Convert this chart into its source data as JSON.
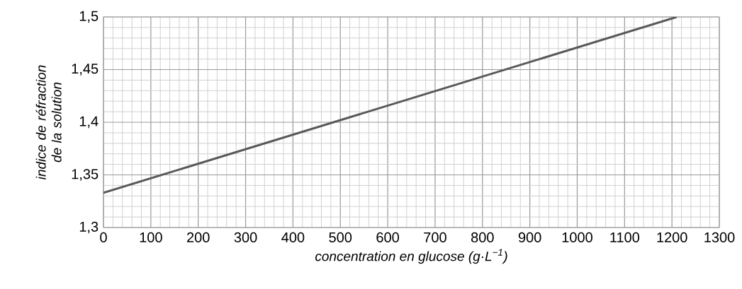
{
  "chart_data": {
    "type": "line",
    "xlabel": "concentration en glucose (g·L$^{−1}$)",
    "ylabel": "indice de réfraction de la solution",
    "x": [
      0,
      1210
    ],
    "series": [
      {
        "color": "#595959",
        "values": [
          1.333,
          1.5
        ]
      }
    ],
    "xlim": [
      0,
      1300
    ],
    "xticks": [
      0,
      100,
      200,
      300,
      400,
      500,
      600,
      700,
      800,
      900,
      1000,
      1100,
      1200,
      1300
    ],
    "ylim": [
      1.3,
      1.5
    ],
    "yticks": [
      {
        "value": 1.3,
        "label": "1,3"
      },
      {
        "value": 1.35,
        "label": "1,35"
      },
      {
        "value": 1.4,
        "label": "1,4"
      },
      {
        "value": 1.45,
        "label": "1,45"
      },
      {
        "value": 1.5,
        "label": "1,5"
      }
    ],
    "grid": true,
    "marker": "none",
    "line_style": "solid"
  }
}
